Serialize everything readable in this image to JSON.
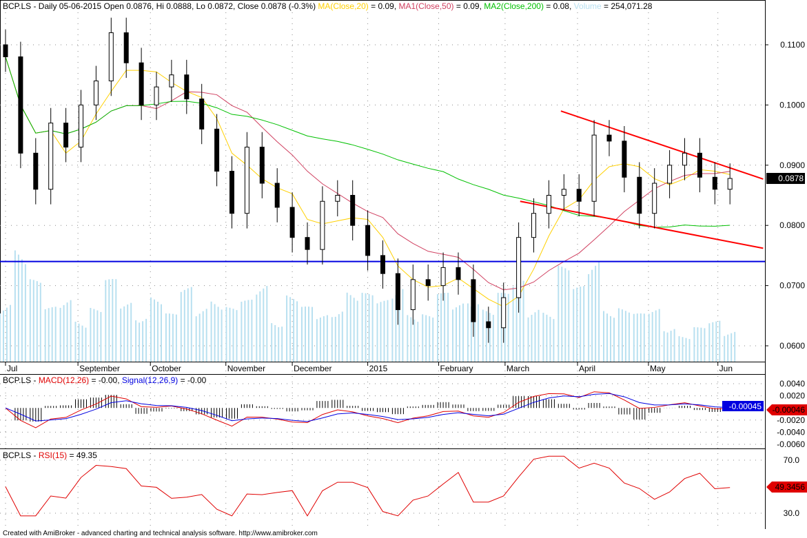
{
  "header": {
    "symbol": "BCP.LS",
    "text": "BCP.LS - Daily 05-06-2015 Open 0.0876, Hi 0.0888, Lo 0.0872, Close 0.0878 (-0.3%)",
    "ma20": "MA(Close,20)",
    "ma20_val": " = 0.09,",
    "ma50": "MA1(Close,50)",
    "ma50_val": " = 0.09,",
    "ma200": "MA2(Close,200)",
    "ma200_val": " = 0.08,",
    "volume": "Volume",
    "volume_val": " = 254,071.28"
  },
  "colors": {
    "ma20": "#ffd000",
    "ma50": "#d04060",
    "ma200": "#00c000",
    "volume": "#b8e0f0",
    "trend": "#ff0000",
    "support": "#0000e0",
    "macd": "#e00000",
    "signal": "#0000e0"
  },
  "macd_header": {
    "a": "BCP.LS - ",
    "b": "MACD(12,26)",
    "c": " = -0.00, ",
    "d": "Signal(12,26,9)",
    "e": " = -0.00"
  },
  "rsi_header": {
    "a": "BCP.LS - ",
    "b": "RSI(15)",
    "c": " = 49.35"
  },
  "footer": "Created with AmiBroker - advanced charting and technical analysis software. http://www.amibroker.com",
  "chart_data": {
    "type": "candlestick",
    "price_ticks": [
      "0.1100",
      "0.1000",
      "0.0900",
      "0.0800",
      "0.0700",
      "0.0600"
    ],
    "price_tick_values": [
      0.11,
      0.1,
      0.09,
      0.08,
      0.07,
      0.06
    ],
    "last_price_label": "0.0878",
    "months": [
      "Jul",
      "September",
      "October",
      "November",
      "December",
      "2015",
      "February",
      "March",
      "April",
      "May",
      "Jun"
    ],
    "month_index": [
      0,
      4.8,
      9.6,
      14.6,
      19,
      24,
      28.7,
      33.1,
      37.9,
      42.6,
      47.2
    ],
    "closes": [
      0.108,
      0.092,
      0.086,
      0.097,
      0.093,
      0.1,
      0.104,
      0.112,
      0.107,
      0.1,
      0.103,
      0.105,
      0.101,
      0.096,
      0.089,
      0.082,
      0.093,
      0.087,
      0.083,
      0.078,
      0.076,
      0.084,
      0.085,
      0.08,
      0.075,
      0.072,
      0.066,
      0.071,
      0.07,
      0.073,
      0.071,
      0.064,
      0.063,
      0.068,
      0.078,
      0.082,
      0.085,
      0.086,
      0.084,
      0.095,
      0.094,
      0.088,
      0.082,
      0.087,
      0.09,
      0.092,
      0.088,
      0.086,
      0.0878
    ],
    "volumes": [
      0.5,
      0.9,
      0.6,
      0.4,
      0.5,
      0.35,
      0.4,
      0.6,
      0.45,
      0.4,
      0.5,
      0.35,
      0.55,
      0.45,
      0.5,
      0.4,
      0.45,
      0.6,
      0.35,
      0.5,
      0.4,
      0.35,
      0.45,
      0.55,
      0.5,
      0.45,
      0.6,
      0.4,
      0.35,
      0.5,
      0.45,
      0.55,
      0.4,
      0.5,
      0.6,
      0.45,
      0.4,
      0.7,
      0.55,
      0.8,
      0.45,
      0.4,
      0.35,
      0.4,
      0.3,
      0.2,
      0.25,
      0.3,
      0.25
    ],
    "trendlines": [
      {
        "from": [
          36.8,
          0.099
        ],
        "to": [
          50.2,
          0.0877
        ]
      },
      {
        "from": [
          34.1,
          0.084
        ],
        "to": [
          50.2,
          0.0762
        ]
      }
    ],
    "support": 0.074,
    "macd_ticks": [
      "0.0040",
      "0.0020",
      "-0.0020",
      "-0.0040",
      "-0.0060"
    ],
    "macd_tick_values": [
      0.004,
      0.002,
      -0.002,
      -0.004,
      -0.006
    ],
    "macd_label": "-0.00046",
    "signal_label": "-0.00045",
    "rsi_ticks": [
      "70.0",
      "30.0"
    ],
    "rsi_tick_values": [
      70,
      30
    ],
    "rsi_label": "49.3456"
  }
}
